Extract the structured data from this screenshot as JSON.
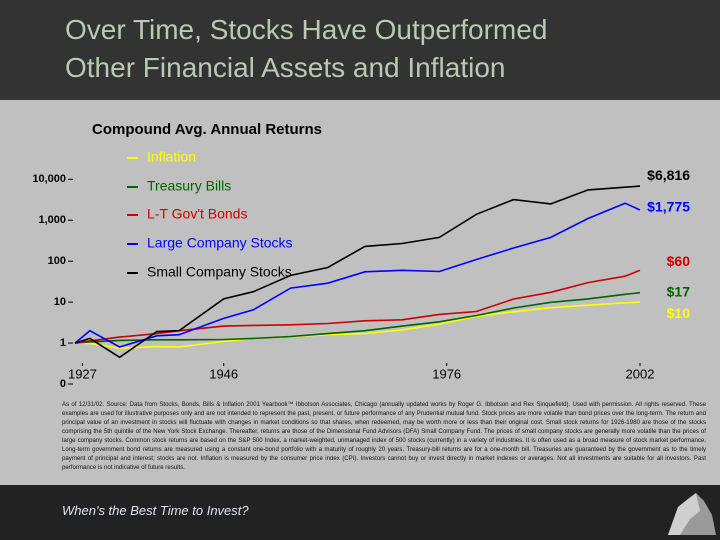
{
  "slide": {
    "title": [
      "Over Time, Stocks Have Outperformed",
      "Other Financial Assets and Inflation"
    ],
    "footnote": "As of 12/31/02. Source: Data from Stocks, Bonds, Bills & Inflation 2001 Yearbook™ Ibbotson Associates, Chicago (annually updated works by Roger G. Ibbotson and Rex Sinquefield). Used with permission. All rights reserved. These examples are used for illustrative purposes only and are not intended to represent the past, present, or future performance of any Prudential mutual fund. Stock prices are more volatile than bond prices over the long-term. The return and principal value of an investment in stocks will fluctuate with changes in market conditions so that shares, when redeemed, may be worth more or less than their original cost. Small stock returns for 1926-1980 are those of the stocks comprising the 5th quintile of the New York Stock Exchange. Thereafter, returns are those of the Dimensional Fund Advisors (DFA) Small Company Fund. The prices of small company stocks are generally more volatile than the prices of large company stocks. Common stock returns are based on the S&P 500 Index, a market-weighted, unmanaged index of 500 stocks (currently) in a variety of industries. It is often used as a broad measure of stock market performance. Long-term government bond returns are measured using a constant one-bond portfolio with a maturity of roughly 20 years. Treasury-bill returns are for a one-month bill. Treasuries are guaranteed by the government as to the timely payment of principal and interest; stocks are not. Inflation is measured by the consumer price index (CPI). Investors cannot buy or invest directly in market indexes or averages. Not all investments are suitable for all investors. Past performance is not indicative of future results.",
    "footer": "When's the Best Time to Invest?"
  },
  "chart_data": {
    "type": "line",
    "title": "Compound Avg. Annual Returns",
    "x": [
      1926,
      1928,
      1932,
      1937,
      1940,
      1946,
      1950,
      1955,
      1960,
      1965,
      1970,
      1975,
      1980,
      1985,
      1990,
      1995,
      2000,
      2002
    ],
    "xlim": [
      1926,
      2002
    ],
    "xticks": [
      1927,
      1946,
      1976,
      2002
    ],
    "ylim": [
      0.1,
      25000
    ],
    "yticks": [
      {
        "value": 0.1,
        "label": "0"
      },
      1,
      10,
      100,
      {
        "value": 1000,
        "label": "1,000"
      },
      {
        "value": 10000,
        "label": "10,000"
      }
    ],
    "log_scale": true,
    "grid": false,
    "legend": "top",
    "series": [
      {
        "name": "Inflation",
        "color": "#ffff00",
        "values": [
          1,
          0.98,
          0.75,
          0.82,
          0.8,
          1.1,
          1.3,
          1.45,
          1.6,
          1.7,
          2.1,
          2.9,
          4.5,
          5.8,
          7.3,
          8.4,
          9.6,
          10
        ],
        "value_labels": [
          null,
          null,
          null,
          null,
          null,
          null,
          null,
          null,
          null,
          null,
          null,
          null,
          null,
          null,
          null,
          null,
          null,
          "$10"
        ]
      },
      {
        "name": "Treasury Bills",
        "color": "#006400",
        "values": [
          1,
          1.07,
          1.16,
          1.2,
          1.2,
          1.22,
          1.3,
          1.45,
          1.7,
          2.0,
          2.6,
          3.3,
          4.7,
          7.2,
          9.9,
          12.0,
          15.5,
          17
        ],
        "value_labels": [
          null,
          null,
          null,
          null,
          null,
          null,
          null,
          null,
          null,
          null,
          null,
          null,
          null,
          null,
          null,
          null,
          null,
          "$17"
        ]
      },
      {
        "name": "L-T Gov't Bonds",
        "color": "#cc0000",
        "values": [
          1,
          1.13,
          1.4,
          1.7,
          2.0,
          2.6,
          2.7,
          2.8,
          3.0,
          3.5,
          3.7,
          5.0,
          5.9,
          11.9,
          17.4,
          30,
          43,
          60
        ],
        "value_labels": [
          null,
          null,
          null,
          null,
          null,
          null,
          null,
          null,
          null,
          null,
          null,
          null,
          null,
          null,
          null,
          null,
          null,
          "$60"
        ]
      },
      {
        "name": "Large Company Stocks",
        "color": "#0000ff",
        "values": [
          1,
          2.0,
          0.8,
          1.5,
          1.6,
          4.0,
          6.5,
          22,
          29,
          55,
          60,
          56,
          110,
          210,
          380,
          1100,
          2600,
          1775
        ],
        "value_labels": [
          null,
          null,
          null,
          null,
          null,
          null,
          null,
          null,
          null,
          null,
          null,
          null,
          null,
          null,
          null,
          null,
          null,
          "$1,775"
        ]
      },
      {
        "name": "Small Company Stocks",
        "color": "#000000",
        "values": [
          1,
          1.3,
          0.45,
          1.9,
          2.0,
          12,
          18,
          45,
          70,
          230,
          270,
          380,
          1400,
          3200,
          2500,
          5500,
          6400,
          6816
        ],
        "value_labels": [
          null,
          null,
          null,
          null,
          null,
          null,
          null,
          null,
          null,
          null,
          null,
          null,
          null,
          null,
          null,
          null,
          null,
          "$6,816"
        ]
      }
    ]
  }
}
